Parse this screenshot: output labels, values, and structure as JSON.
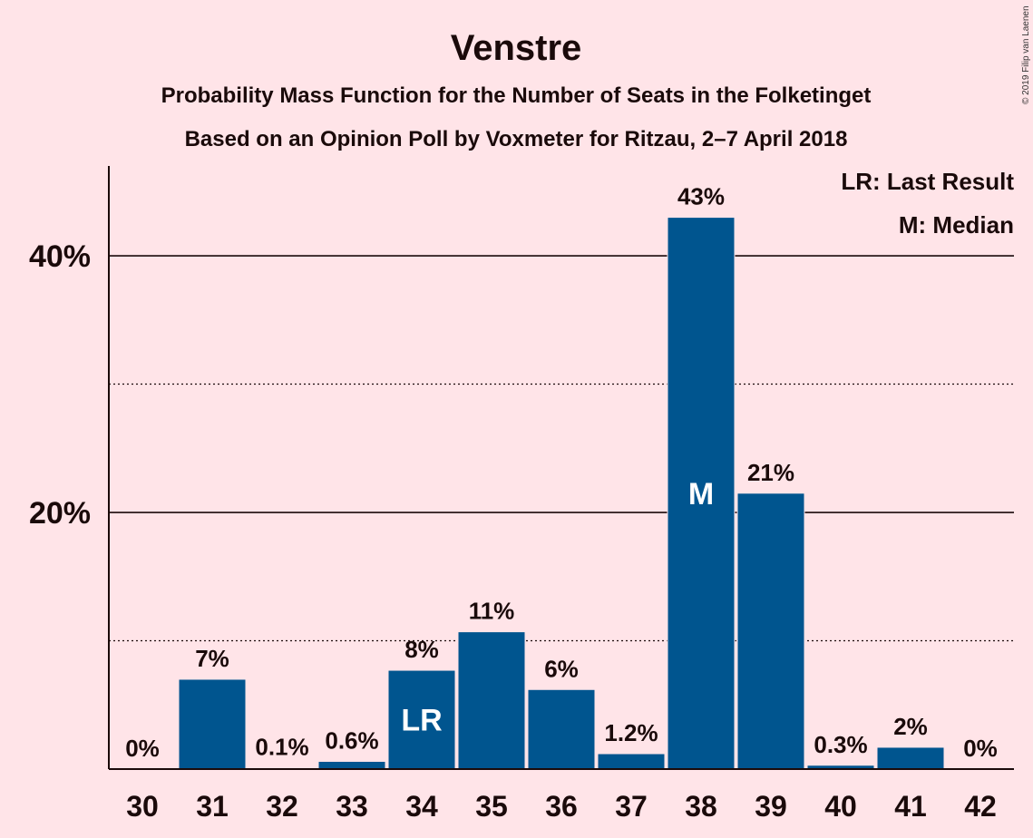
{
  "chart_data": {
    "type": "bar",
    "title": "Venstre",
    "subtitle": "Probability Mass Function for the Number of Seats in the Folketinget",
    "subtitle2": "Based on an Opinion Poll by Voxmeter for Ritzau, 2–7 April 2018",
    "categories": [
      "30",
      "31",
      "32",
      "33",
      "34",
      "35",
      "36",
      "37",
      "38",
      "39",
      "40",
      "41",
      "42"
    ],
    "values": [
      0,
      7.0,
      0.1,
      0.6,
      7.7,
      10.7,
      6.2,
      1.2,
      43.0,
      21.5,
      0.3,
      1.7,
      0
    ],
    "data_labels": [
      "0%",
      "7%",
      "0.1%",
      "0.6%",
      "8%",
      "11%",
      "6%",
      "1.2%",
      "43%",
      "21%",
      "0.3%",
      "2%",
      "0%"
    ],
    "bar_annotations": {
      "34": "LR",
      "38": "M"
    },
    "ylim": [
      0,
      47
    ],
    "yticks": [
      {
        "value": 20,
        "label": "20%"
      },
      {
        "value": 40,
        "label": "40%"
      }
    ],
    "minor_gridlines": [
      10,
      30
    ],
    "legend": [
      "LR: Last Result",
      "M: Median"
    ],
    "legend_position": "top-right",
    "copyright": "© 2019 Filip van Laenen",
    "bar_color": "#00558f"
  }
}
